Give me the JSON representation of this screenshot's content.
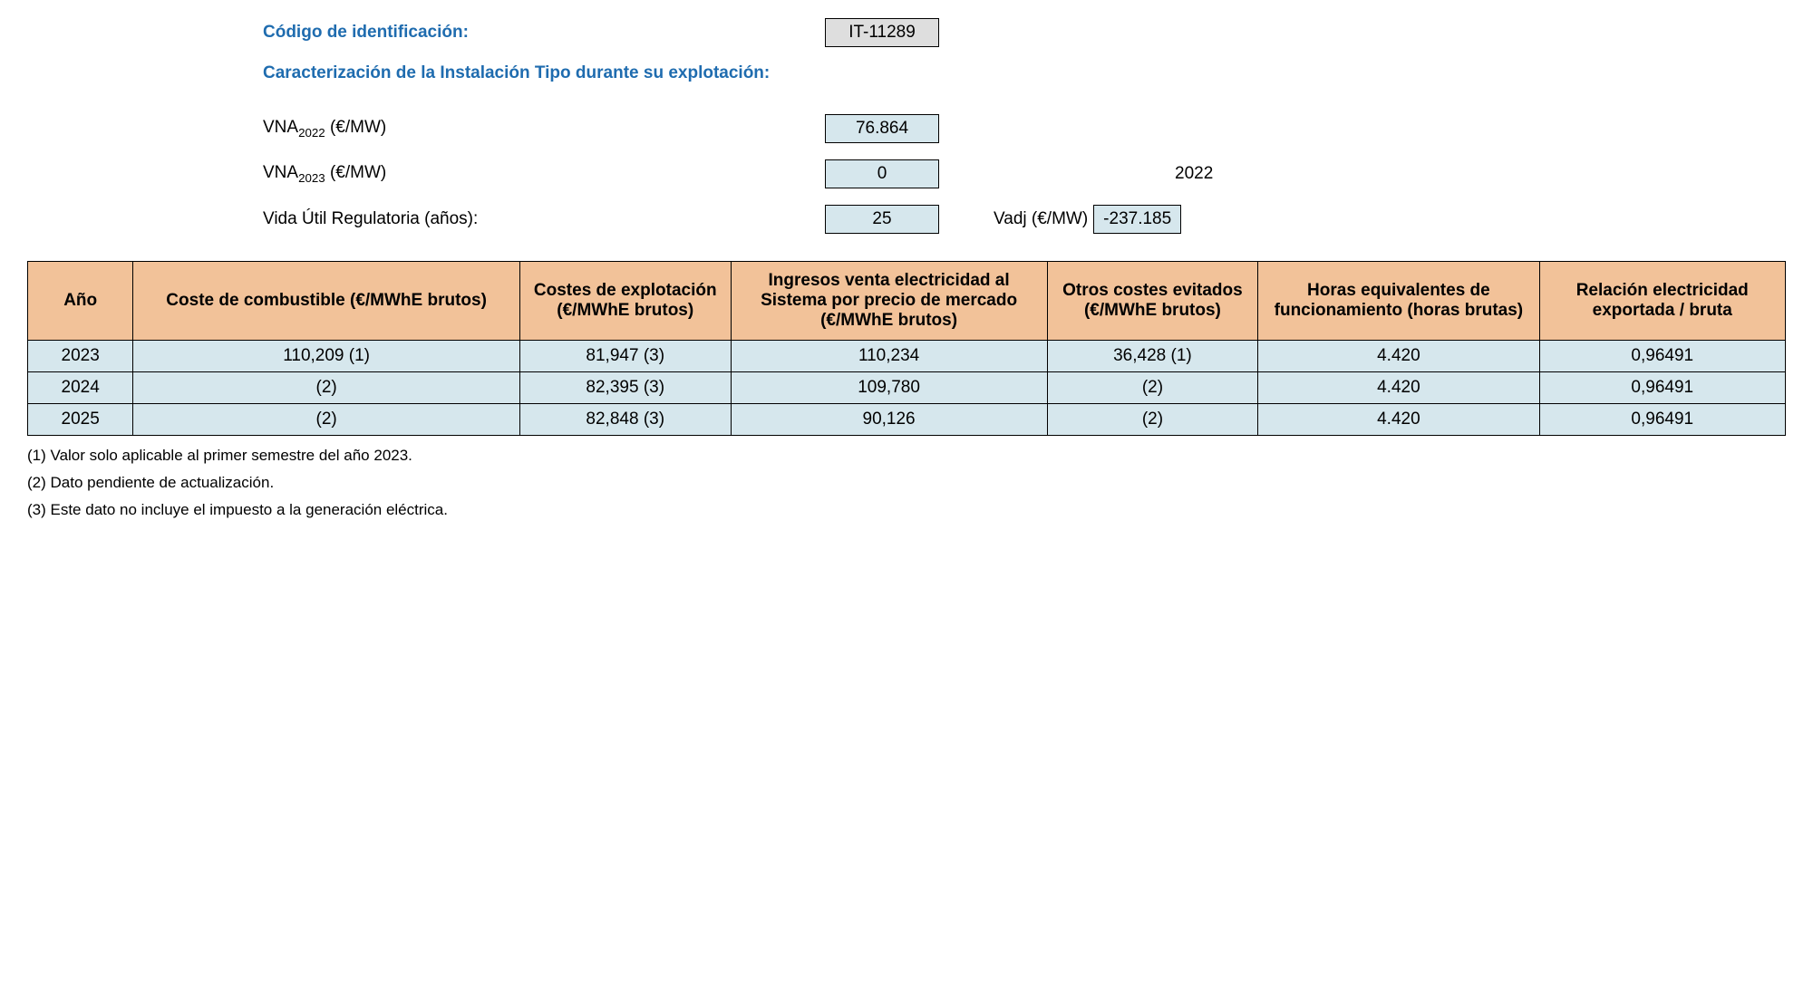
{
  "header": {
    "id_label": "Código de identificación:",
    "id_value": "IT-11289",
    "section_title": "Caracterización de la Instalación Tipo durante su explotación:",
    "vna2022_label_prefix": "VNA",
    "vna2022_sub": "2022",
    "vna_units": " (€/MW)",
    "vna2022_value": "76.864",
    "vna2023_label_prefix": "VNA",
    "vna2023_sub": "2023",
    "vna2023_value": "0",
    "year_2022": "2022",
    "vida_util_label": "Vida Útil Regulatoria (años):",
    "vida_util_value": "25",
    "vadj_label": "Vadj (€/MW)",
    "vadj_value": "-237.185"
  },
  "table": {
    "columns": [
      "Año",
      "Coste de combustible (€/MWhE brutos)",
      "Costes de explotación (€/MWhE brutos)",
      "Ingresos venta electricidad al Sistema por precio de mercado (€/MWhE brutos)",
      "Otros costes evitados (€/MWhE brutos)",
      "Horas equivalentes de funcionamiento (horas brutas)",
      "Relación electricidad exportada / bruta"
    ],
    "col_widths": [
      "6%",
      "22%",
      "12%",
      "18%",
      "12%",
      "16%",
      "14%"
    ],
    "rows": [
      [
        "2023",
        "110,209 (1)",
        "81,947 (3)",
        "110,234",
        "36,428 (1)",
        "4.420",
        "0,96491"
      ],
      [
        "2024",
        "(2)",
        "82,395 (3)",
        "109,780",
        "(2)",
        "4.420",
        "0,96491"
      ],
      [
        "2025",
        "(2)",
        "82,848 (3)",
        "90,126",
        "(2)",
        "4.420",
        "0,96491"
      ]
    ],
    "header_bg": "#f2c299",
    "cell_bg": "#d6e7ed"
  },
  "footnotes": [
    "(1) Valor solo aplicable al primer semestre del año 2023.",
    "(2) Dato pendiente de actualización.",
    "(3) Este dato no incluye el impuesto a la generación eléctrica."
  ]
}
